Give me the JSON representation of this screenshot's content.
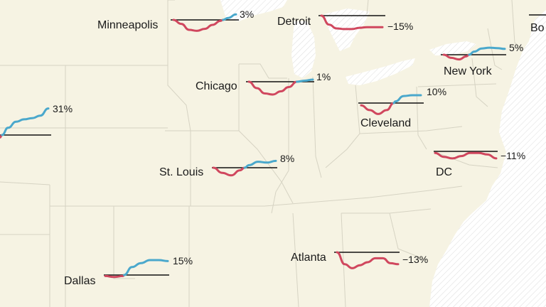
{
  "colors": {
    "land": "#f6f3e3",
    "water": "#ffffff",
    "water_hatch": "#d9d9d9",
    "border": "#d6d3c3",
    "baseline": "#111111",
    "decline": "#d0475e",
    "growth": "#4aa8cc"
  },
  "cities": [
    {
      "id": "minneapolis",
      "name": "Minneapolis",
      "change": "3%",
      "trend": [
        0,
        -0.4,
        -1,
        -1.1,
        -0.9,
        -0.5,
        -0.1,
        0.2,
        0.55
      ]
    },
    {
      "id": "detroit",
      "name": "Detroit",
      "change": "−15%",
      "trend": [
        0,
        -0.7,
        -1,
        -1.05,
        -1.05,
        -0.95,
        -0.9,
        -0.9,
        -0.9
      ]
    },
    {
      "id": "bo",
      "name": "Bo",
      "change": "",
      "trend": []
    },
    {
      "id": "new-york",
      "name": "New York",
      "change": "5%",
      "trend": [
        0,
        -0.4,
        -0.6,
        -0.2,
        0.4,
        0.8,
        0.9,
        0.85,
        0.75
      ]
    },
    {
      "id": "chicago",
      "name": "Chicago",
      "change": "1%",
      "trend": [
        0,
        -0.6,
        -1.1,
        -1.2,
        -0.9,
        -0.5,
        0,
        0.1,
        0.2
      ]
    },
    {
      "id": "west-city",
      "name": "",
      "change": "31%",
      "trend": [
        -0.2,
        0.6,
        1.1,
        1.3,
        1.4,
        1.6,
        2.2
      ]
    },
    {
      "id": "cleveland",
      "name": "Cleveland",
      "change": "10%",
      "trend": [
        -0.3,
        -0.9,
        -1.4,
        -0.9,
        0.2,
        0.9,
        1.0,
        1.0
      ]
    },
    {
      "id": "dc",
      "name": "DC",
      "change": "−11%",
      "trend": [
        -0.2,
        -0.7,
        -0.9,
        -0.6,
        -0.2,
        -0.2,
        -0.4,
        -0.9
      ]
    },
    {
      "id": "st-louis",
      "name": "St. Louis",
      "change": "8%",
      "trend": [
        0,
        -0.6,
        -0.9,
        -0.3,
        0.3,
        0.7,
        0.6,
        0.8
      ]
    },
    {
      "id": "atlanta",
      "name": "Atlanta",
      "change": "−13%",
      "trend": [
        0,
        -1.2,
        -1.6,
        -1.3,
        -1.0,
        -0.6,
        -0.6,
        -1.1,
        -1.2
      ]
    },
    {
      "id": "dallas",
      "name": "Dallas",
      "change": "15%",
      "trend": [
        -0.1,
        -0.2,
        -0.1,
        0.8,
        1.2,
        1.5,
        1.5,
        1.4
      ]
    }
  ]
}
